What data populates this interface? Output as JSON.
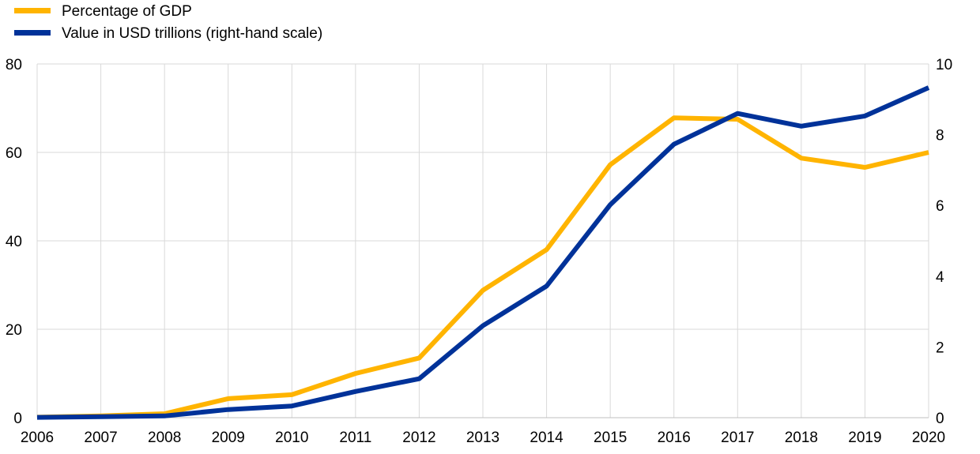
{
  "chart_data": {
    "type": "line",
    "title": "",
    "x": [
      "2006",
      "2007",
      "2008",
      "2009",
      "2010",
      "2011",
      "2012",
      "2013",
      "2014",
      "2015",
      "2016",
      "2017",
      "2018",
      "2019",
      "2020"
    ],
    "series": [
      {
        "name": "Percentage of GDP",
        "axis": "left",
        "color": "#FFB400",
        "values": [
          0.1,
          0.4,
          0.9,
          4.3,
          5.2,
          10.0,
          13.5,
          28.8,
          38.0,
          57.2,
          67.8,
          67.5,
          58.7,
          56.6,
          60.0
        ]
      },
      {
        "name": "Value in USD trillions (right-hand scale)",
        "axis": "right",
        "color": "#003299",
        "values": [
          0.01,
          0.03,
          0.05,
          0.23,
          0.33,
          0.74,
          1.1,
          2.6,
          3.72,
          6.02,
          7.73,
          8.6,
          8.24,
          8.53,
          9.33
        ]
      }
    ],
    "y_left": {
      "ylim": [
        0,
        80
      ],
      "ticks": [
        0,
        20,
        40,
        60,
        80
      ],
      "tick_labels": [
        "0",
        "20",
        "40",
        "60",
        "80"
      ]
    },
    "y_right": {
      "ylim": [
        0,
        10
      ],
      "ticks": [
        0,
        2,
        4,
        6,
        8,
        10
      ],
      "tick_labels": [
        "0",
        "2",
        "4",
        "6",
        "8",
        "10"
      ]
    },
    "grid": true,
    "legend_position": "top-left"
  }
}
